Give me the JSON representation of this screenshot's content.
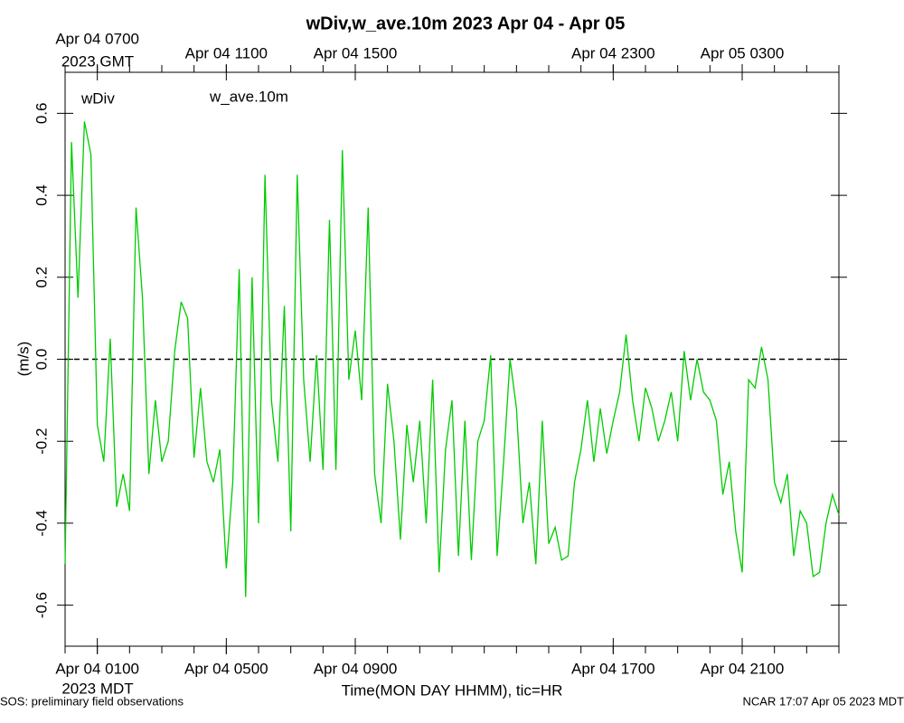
{
  "chart_data": {
    "type": "line",
    "title": "wDiv,w_ave.10m 2023 Apr 04 - Apr 05",
    "annotation": "wDiv",
    "annotation_color": "#ff0000",
    "y_label": "(m/s)",
    "x_label": "Time(MON DAY HHMM), tic=HR",
    "x_zone_label": "2023 MDT",
    "x2_zone_label": "2023 GMT",
    "footer_left": "SOS: preliminary field observations",
    "footer_right": "NCAR 17:07 Apr 05 2023 MDT",
    "xlim": [
      0,
      24
    ],
    "ylim": [
      -0.7,
      0.7
    ],
    "yticks": [
      -0.6,
      -0.4,
      -0.2,
      {
        "value": 0,
        "label": "0.0"
      },
      0.2,
      0.4,
      0.6
    ],
    "xticks": [
      {
        "value": 1,
        "label": "Apr 04 0100"
      },
      {
        "value": 5,
        "label": "Apr 04 0500"
      },
      {
        "value": 9,
        "label": "Apr 04 0900"
      },
      {
        "value": 17,
        "label": "Apr 04 1700"
      },
      {
        "value": 21,
        "label": "Apr 04 2100"
      }
    ],
    "x2ticks": [
      {
        "value": 1,
        "label": "Apr 04 0700"
      },
      {
        "value": 5,
        "label": "Apr 04 1100"
      },
      {
        "value": 9,
        "label": "Apr 04 1500"
      },
      {
        "value": 17,
        "label": "Apr 04 2300"
      },
      {
        "value": 21,
        "label": "Apr 05 0300"
      }
    ],
    "xminor_ticks": [
      0,
      1,
      2,
      3,
      4,
      5,
      6,
      7,
      8,
      9,
      10,
      11,
      12,
      13,
      14,
      15,
      16,
      17,
      18,
      19,
      20,
      21,
      22,
      23,
      24
    ],
    "reference_line": 0,
    "x": [
      0,
      0.2,
      0.4,
      0.6,
      0.8,
      1,
      1.2,
      1.4,
      1.6,
      1.8,
      2,
      2.2,
      2.4,
      2.6,
      2.8,
      3,
      3.2,
      3.4,
      3.6,
      3.8,
      4,
      4.2,
      4.4,
      4.6,
      4.8,
      5,
      5.2,
      5.4,
      5.6,
      5.8,
      6,
      6.2,
      6.4,
      6.6,
      6.8,
      7,
      7.2,
      7.4,
      7.6,
      7.8,
      8,
      8.2,
      8.4,
      8.6,
      8.8,
      9,
      9.2,
      9.4,
      9.6,
      9.8,
      10,
      10.2,
      10.4,
      10.6,
      10.8,
      11,
      11.2,
      11.4,
      11.6,
      11.8,
      12,
      12.2,
      12.4,
      12.6,
      12.8,
      13,
      13.2,
      13.4,
      13.6,
      13.8,
      14,
      14.2,
      14.4,
      14.6,
      14.8,
      15,
      15.2,
      15.4,
      15.6,
      15.8,
      16,
      16.2,
      16.4,
      16.6,
      16.8,
      17,
      17.2,
      17.4,
      17.6,
      17.8,
      18,
      18.2,
      18.4,
      18.6,
      18.8,
      19,
      19.2,
      19.4,
      19.6,
      19.8,
      20,
      20.2,
      20.4,
      20.6,
      20.8,
      21,
      21.2,
      21.4,
      21.6,
      21.8,
      22,
      22.2,
      22.4,
      22.6,
      22.8,
      23,
      23.2,
      23.4,
      23.6,
      23.8,
      24
    ],
    "series": [
      {
        "name": "w_ave.10m",
        "color": "#00cc00",
        "values": [
          -0.5,
          0.53,
          0.15,
          0.58,
          0.5,
          -0.16,
          -0.25,
          0.05,
          -0.36,
          -0.28,
          -0.37,
          0.37,
          0.15,
          -0.28,
          -0.1,
          -0.25,
          -0.2,
          0.02,
          0.14,
          0.1,
          -0.24,
          -0.07,
          -0.25,
          -0.3,
          -0.22,
          -0.51,
          -0.3,
          0.22,
          -0.58,
          0.2,
          -0.4,
          0.45,
          -0.1,
          -0.25,
          0.13,
          -0.42,
          0.45,
          -0.05,
          -0.25,
          0.01,
          -0.27,
          0.34,
          -0.27,
          0.51,
          -0.05,
          0.07,
          -0.1,
          0.37,
          -0.28,
          -0.4,
          -0.06,
          -0.2,
          -0.44,
          -0.16,
          -0.3,
          -0.15,
          -0.4,
          -0.05,
          -0.52,
          -0.22,
          -0.1,
          -0.48,
          -0.15,
          -0.49,
          -0.2,
          -0.15,
          0.01,
          -0.48,
          -0.25,
          0,
          -0.12,
          -0.4,
          -0.3,
          -0.5,
          -0.15,
          -0.45,
          -0.41,
          -0.49,
          -0.48,
          -0.3,
          -0.22,
          -0.1,
          -0.25,
          -0.12,
          -0.23,
          -0.15,
          -0.08,
          0.06,
          -0.1,
          -0.2,
          -0.07,
          -0.12,
          -0.2,
          -0.15,
          -0.08,
          -0.2,
          0.02,
          -0.1,
          0,
          -0.08,
          -0.1,
          -0.15,
          -0.33,
          -0.25,
          -0.42,
          -0.52,
          -0.05,
          -0.07,
          0.03,
          -0.05,
          -0.3,
          -0.35,
          -0.28,
          -0.48,
          -0.37,
          -0.4,
          -0.53,
          -0.52,
          -0.4,
          -0.33,
          -0.38
        ]
      }
    ]
  }
}
